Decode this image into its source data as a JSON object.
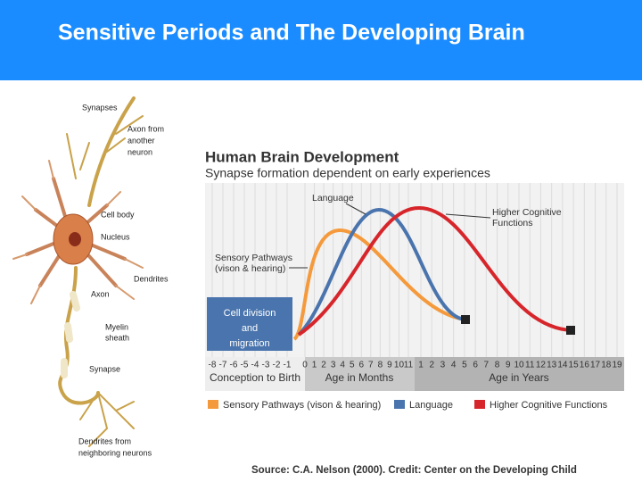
{
  "header": {
    "title": "Sensitive Periods and The Developing Brain"
  },
  "neuron": {
    "synapses": "Synapses",
    "axon_from": [
      "Axon from",
      "another",
      "neuron"
    ],
    "cell_body": "Cell body",
    "nucleus": "Nucleus",
    "dendrites": "Dendrites",
    "axon": "Axon",
    "myelin": [
      "Myelin",
      "sheath"
    ],
    "synapse": "Synapse",
    "dendrites_from": [
      "Dendrites from",
      "neighboring neurons"
    ]
  },
  "chart": {
    "title": "Human Brain Development",
    "subtitle": "Synapse formation dependent on early experiences",
    "annotations": {
      "language": "Language",
      "higher": [
        "Higher Cognitive",
        "Functions"
      ],
      "sensory": [
        "Sensory Pathways",
        "(vison & hearing)"
      ],
      "cell": [
        "Cell division",
        "and",
        "migration"
      ]
    },
    "axis": {
      "conception": [
        -8,
        -7,
        -6,
        -5,
        -4,
        -3,
        -2,
        -1
      ],
      "months": [
        0,
        1,
        2,
        3,
        4,
        5,
        6,
        7,
        8,
        9,
        10,
        11
      ],
      "years": [
        1,
        2,
        3,
        4,
        5,
        6,
        7,
        8,
        9,
        10,
        11,
        12,
        13,
        14,
        15,
        16,
        17,
        18,
        19
      ],
      "bands": [
        "Conception to Birth",
        "Age in Months",
        "Age in Years"
      ]
    },
    "legend": [
      "Sensory Pathways (vison & hearing)",
      "Language",
      "Higher Cognitive Functions"
    ]
  },
  "source": "Source: C.A. Nelson (2000). Credit: Center on the Developing Child"
}
